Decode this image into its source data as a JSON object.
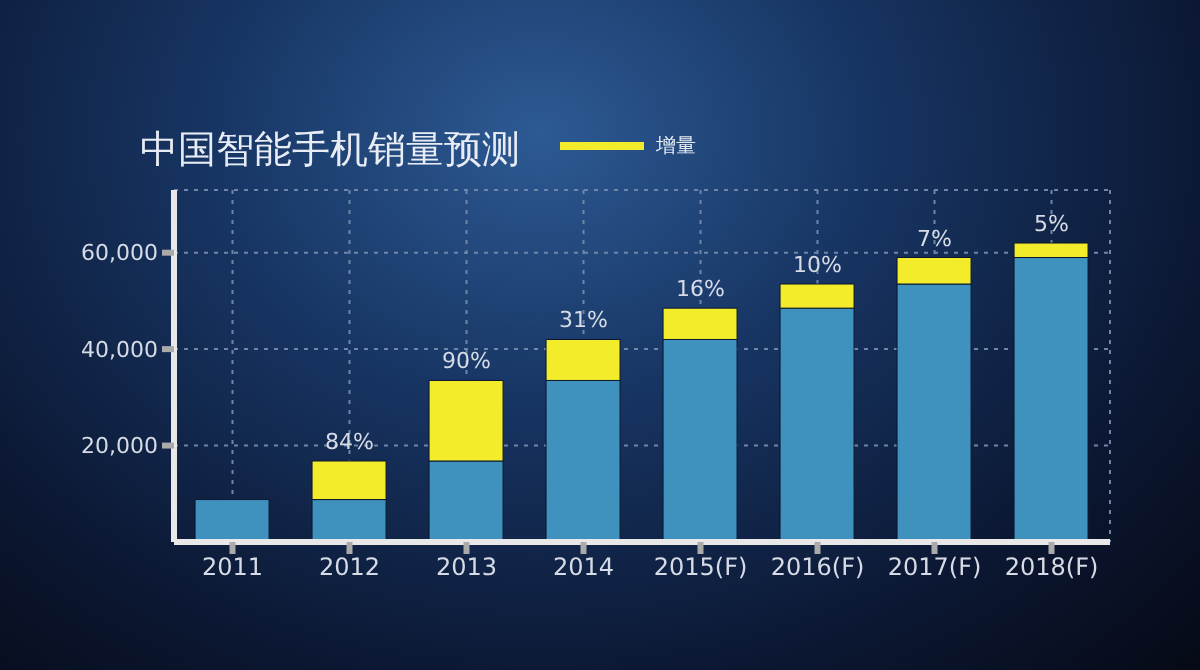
{
  "chart_data": {
    "type": "bar",
    "title": "中国智能手机销量预测",
    "stacked": true,
    "categories": [
      "2011",
      "2012",
      "2013",
      "2014",
      "2015(F)",
      "2016(F)",
      "2017(F)",
      "2018(F)"
    ],
    "series": [
      {
        "color": "#3f92bd",
        "values": [
          8800,
          8800,
          16800,
          33500,
          42000,
          48500,
          53500,
          59000
        ]
      },
      {
        "name": "增量",
        "color": "#f2ec2a",
        "values": [
          null,
          8000,
          16700,
          8500,
          6500,
          5000,
          5500,
          3000
        ]
      }
    ],
    "annotations": [
      {
        "text": "84%",
        "x": "2012",
        "y": 16800
      },
      {
        "text": "90%",
        "x": "2013",
        "y": 33500
      },
      {
        "text": "31%",
        "x": "2014",
        "y": 42000
      },
      {
        "text": "16%",
        "x": "2015(F)",
        "y": 48500
      },
      {
        "text": "10%",
        "x": "2016(F)",
        "y": 53500
      },
      {
        "text": "7%",
        "x": "2017(F)",
        "y": 59000
      },
      {
        "text": "5%",
        "x": "2018(F)",
        "y": 62000
      }
    ],
    "ylim": [
      0,
      73000
    ],
    "yticks": [
      {
        "value": 20000,
        "label": "20,000"
      },
      {
        "value": 40000,
        "label": "40,000"
      },
      {
        "value": 60000,
        "label": "60,000"
      }
    ],
    "grid": true,
    "legend": "top"
  }
}
